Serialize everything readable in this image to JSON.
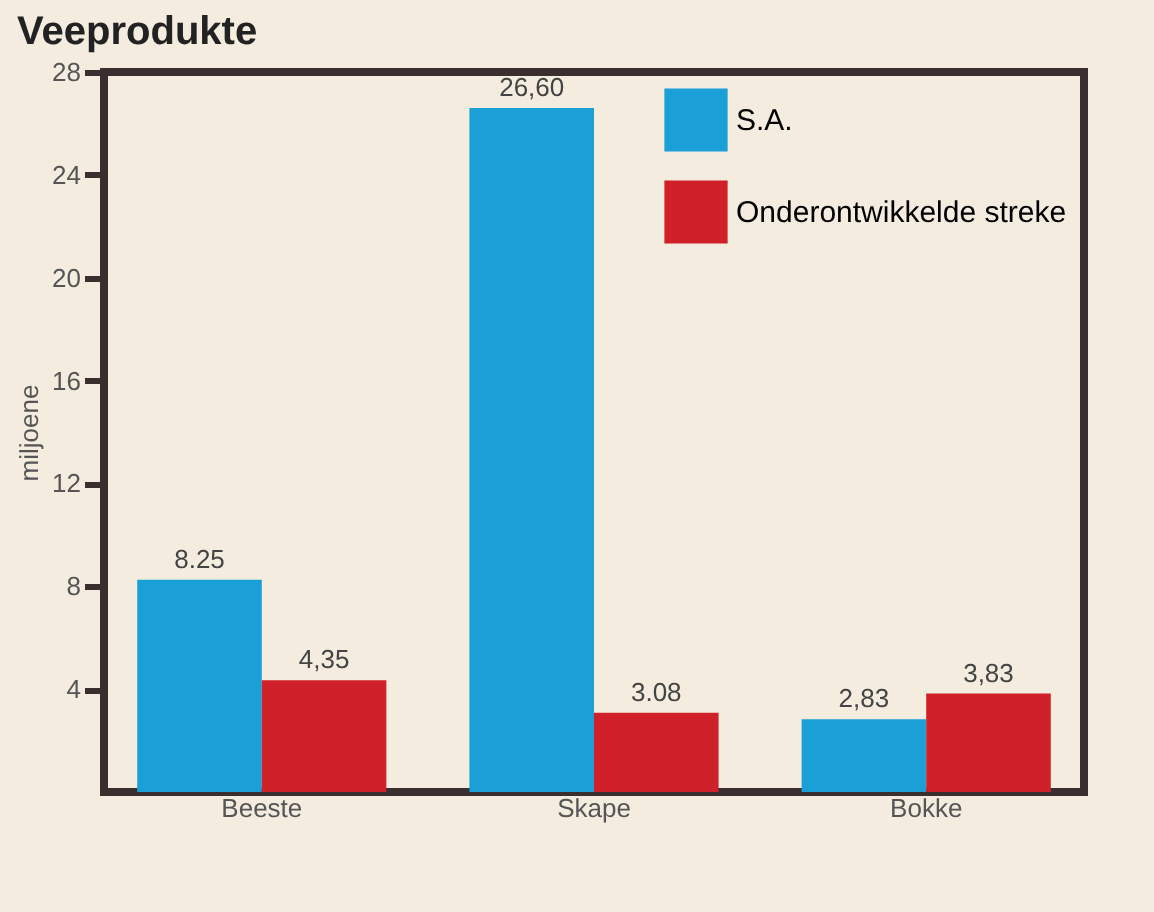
{
  "chart_data": {
    "type": "bar",
    "title": "Veeprodukte",
    "ylabel": "miljoene",
    "categories": [
      "Beeste",
      "Skape",
      "Bokke"
    ],
    "series": [
      {
        "name": "S.A.",
        "color": "#1a9fd6",
        "values": [
          8.25,
          26.6,
          2.83
        ],
        "value_labels": [
          "8.25",
          "26,60",
          "2,83"
        ]
      },
      {
        "name": "Onderontwikkelde streke",
        "color": "#d0202a",
        "values": [
          4.35,
          3.08,
          3.83
        ],
        "value_labels": [
          "4,35",
          "3.08",
          "3,83"
        ]
      }
    ],
    "ylim": [
      0,
      28
    ],
    "yticks": [
      4,
      8,
      12,
      16,
      20,
      24,
      28
    ],
    "grid": false,
    "legend": "top right"
  }
}
